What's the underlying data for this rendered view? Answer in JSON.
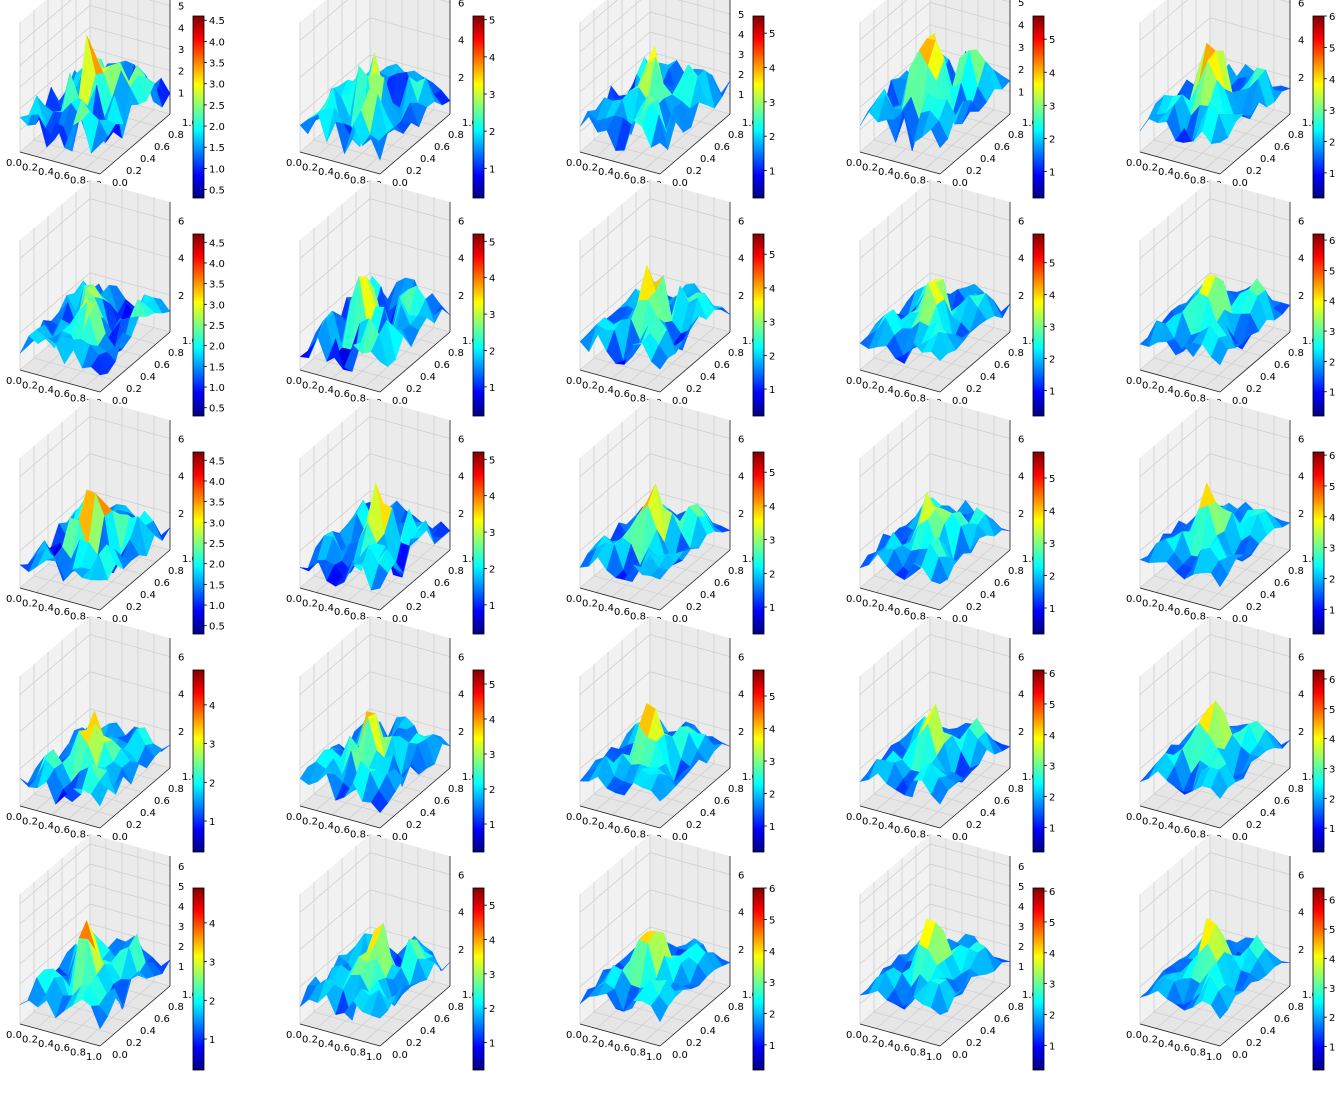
{
  "figure": {
    "type": "surface-3d-grid",
    "rows": 5,
    "cols": 5,
    "colormap": "jet",
    "colormap_stops": [
      "#00007f",
      "#0000ff",
      "#007fff",
      "#00ffff",
      "#7fff7f",
      "#ffff00",
      "#ff7f00",
      "#ff0000",
      "#7f0000"
    ],
    "pane_color": "#f2f2f2",
    "grid_color": "#d0d0d0"
  },
  "chart_data": [
    {
      "type": "surface",
      "xlim": [
        0,
        1
      ],
      "ylim": [
        0,
        1
      ],
      "x_ticks": [
        "0.0",
        "0.2",
        "0.4",
        "0.6",
        "0.8",
        "1.0"
      ],
      "y_ticks": [
        "0.0",
        "0.2",
        "0.4",
        "0.6",
        "0.8",
        "1.0"
      ],
      "z_ticks": [
        "1",
        "2",
        "3",
        "4",
        "5"
      ],
      "zlim": [
        0,
        6
      ],
      "clim": [
        0.3,
        4.6
      ],
      "colorbar_ticks": [
        "0.5",
        "1.0",
        "1.5",
        "2.0",
        "2.5",
        "3.0",
        "3.5",
        "4.0",
        "4.5"
      ],
      "peak": 4.6,
      "spikiness": 0.95,
      "seed": 11
    },
    {
      "type": "surface",
      "xlim": [
        0,
        1
      ],
      "ylim": [
        0,
        1
      ],
      "x_ticks": [
        "0.0",
        "0.2",
        "0.4",
        "0.6",
        "0.8",
        "1.0"
      ],
      "y_ticks": [
        "0.0",
        "0.2",
        "0.4",
        "0.6",
        "0.8",
        "1.0"
      ],
      "z_ticks": [
        "2",
        "4",
        "6"
      ],
      "zlim": [
        0,
        7
      ],
      "clim": [
        0.2,
        5.1
      ],
      "colorbar_ticks": [
        "1",
        "2",
        "3",
        "4",
        "5"
      ],
      "peak": 5.1,
      "spikiness": 0.9,
      "seed": 12
    },
    {
      "type": "surface",
      "xlim": [
        0,
        1
      ],
      "ylim": [
        0,
        1
      ],
      "x_ticks": [
        "0.0",
        "0.2",
        "0.4",
        "0.6",
        "0.8",
        "1.0"
      ],
      "y_ticks": [
        "0.0",
        "0.2",
        "0.4",
        "0.6",
        "0.8",
        "1.0"
      ],
      "z_ticks": [
        "1",
        "2",
        "3",
        "4",
        "5",
        "6"
      ],
      "zlim": [
        0,
        6.5
      ],
      "clim": [
        0.2,
        5.5
      ],
      "colorbar_ticks": [
        "1",
        "2",
        "3",
        "4",
        "5"
      ],
      "peak": 5.5,
      "spikiness": 0.6,
      "seed": 13
    },
    {
      "type": "surface",
      "xlim": [
        0,
        1
      ],
      "ylim": [
        0,
        1
      ],
      "x_ticks": [
        "0.0",
        "0.2",
        "0.4",
        "0.6",
        "0.8",
        "1.0"
      ],
      "y_ticks": [
        "0.0",
        "0.2",
        "0.4",
        "0.6",
        "0.8",
        "1.0"
      ],
      "z_ticks": [
        "1",
        "2",
        "3",
        "4",
        "5"
      ],
      "zlim": [
        0,
        5.8
      ],
      "clim": [
        0.2,
        5.7
      ],
      "colorbar_ticks": [
        "1",
        "2",
        "3",
        "4",
        "5"
      ],
      "peak": 5.7,
      "spikiness": 0.5,
      "seed": 14
    },
    {
      "type": "surface",
      "xlim": [
        0,
        1
      ],
      "ylim": [
        0,
        1
      ],
      "x_ticks": [
        "0.0",
        "0.2",
        "0.4",
        "0.6",
        "0.8",
        "1.0"
      ],
      "y_ticks": [
        "0.0",
        "0.2",
        "0.4",
        "0.6",
        "0.8",
        "1.0"
      ],
      "z_ticks": [
        "2",
        "4",
        "6"
      ],
      "zlim": [
        0,
        7
      ],
      "clim": [
        0.2,
        6.0
      ],
      "colorbar_ticks": [
        "1",
        "2",
        "3",
        "4",
        "5",
        "6"
      ],
      "peak": 6.0,
      "spikiness": 0.4,
      "seed": 15
    },
    {
      "type": "surface",
      "xlim": [
        0,
        1
      ],
      "ylim": [
        0,
        1
      ],
      "x_ticks": [
        "0.0",
        "0.2",
        "0.4",
        "0.6",
        "0.8",
        "1.0"
      ],
      "y_ticks": [
        "0.0",
        "0.2",
        "0.4",
        "0.6",
        "0.8",
        "1.0"
      ],
      "z_ticks": [
        "2",
        "4",
        "6"
      ],
      "zlim": [
        0,
        7
      ],
      "clim": [
        0.3,
        4.7
      ],
      "colorbar_ticks": [
        "0.5",
        "1.0",
        "1.5",
        "2.0",
        "2.5",
        "3.0",
        "3.5",
        "4.0",
        "4.5"
      ],
      "peak": 4.7,
      "spikiness": 0.8,
      "seed": 21
    },
    {
      "type": "surface",
      "xlim": [
        0,
        1
      ],
      "ylim": [
        0,
        1
      ],
      "x_ticks": [
        "0.0",
        "0.2",
        "0.4",
        "0.6",
        "0.8",
        "1.0"
      ],
      "y_ticks": [
        "0.0",
        "0.2",
        "0.4",
        "0.6",
        "0.8",
        "1.0"
      ],
      "z_ticks": [
        "2",
        "4",
        "6"
      ],
      "zlim": [
        0,
        7
      ],
      "clim": [
        0.2,
        5.2
      ],
      "colorbar_ticks": [
        "1",
        "2",
        "3",
        "4",
        "5"
      ],
      "peak": 5.2,
      "spikiness": 0.75,
      "seed": 22
    },
    {
      "type": "surface",
      "xlim": [
        0,
        1
      ],
      "ylim": [
        0,
        1
      ],
      "x_ticks": [
        "0.0",
        "0.2",
        "0.4",
        "0.6",
        "0.8",
        "1.0"
      ],
      "y_ticks": [
        "0.0",
        "0.2",
        "0.4",
        "0.6",
        "0.8",
        "1.0"
      ],
      "z_ticks": [
        "2",
        "4",
        "6"
      ],
      "zlim": [
        0,
        7
      ],
      "clim": [
        0.2,
        5.6
      ],
      "colorbar_ticks": [
        "1",
        "2",
        "3",
        "4",
        "5"
      ],
      "peak": 5.6,
      "spikiness": 0.45,
      "seed": 23
    },
    {
      "type": "surface",
      "xlim": [
        0,
        1
      ],
      "ylim": [
        0,
        1
      ],
      "x_ticks": [
        "0.0",
        "0.2",
        "0.4",
        "0.6",
        "0.8",
        "1.0"
      ],
      "y_ticks": [
        "0.0",
        "0.2",
        "0.4",
        "0.6",
        "0.8",
        "1.0"
      ],
      "z_ticks": [
        "2",
        "4",
        "6"
      ],
      "zlim": [
        0,
        7
      ],
      "clim": [
        0.2,
        5.9
      ],
      "colorbar_ticks": [
        "1",
        "2",
        "3",
        "4",
        "5"
      ],
      "peak": 5.9,
      "spikiness": 0.35,
      "seed": 24
    },
    {
      "type": "surface",
      "xlim": [
        0,
        1
      ],
      "ylim": [
        0,
        1
      ],
      "x_ticks": [
        "0.0",
        "0.2",
        "0.4",
        "0.6",
        "0.8",
        "1.0"
      ],
      "y_ticks": [
        "0.0",
        "0.2",
        "0.4",
        "0.6",
        "0.8",
        "1.0"
      ],
      "z_ticks": [
        "2",
        "4",
        "6"
      ],
      "zlim": [
        0,
        7
      ],
      "clim": [
        0.2,
        6.2
      ],
      "colorbar_ticks": [
        "1",
        "2",
        "3",
        "4",
        "5",
        "6"
      ],
      "peak": 6.2,
      "spikiness": 0.3,
      "seed": 25
    },
    {
      "type": "surface",
      "xlim": [
        0,
        1
      ],
      "ylim": [
        0,
        1
      ],
      "x_ticks": [
        "0.0",
        "0.2",
        "0.4",
        "0.6",
        "0.8",
        "1.0"
      ],
      "y_ticks": [
        "0.0",
        "0.2",
        "0.4",
        "0.6",
        "0.8",
        "1.0"
      ],
      "z_ticks": [
        "2",
        "4",
        "6"
      ],
      "zlim": [
        0,
        7
      ],
      "clim": [
        0.3,
        4.7
      ],
      "colorbar_ticks": [
        "0.5",
        "1.0",
        "1.5",
        "2.0",
        "2.5",
        "3.0",
        "3.5",
        "4.0",
        "4.5"
      ],
      "peak": 4.7,
      "spikiness": 0.7,
      "seed": 31
    },
    {
      "type": "surface",
      "xlim": [
        0,
        1
      ],
      "ylim": [
        0,
        1
      ],
      "x_ticks": [
        "0.0",
        "0.2",
        "0.4",
        "0.6",
        "0.8",
        "1.0"
      ],
      "y_ticks": [
        "0.0",
        "0.2",
        "0.4",
        "0.6",
        "0.8",
        "1.0"
      ],
      "z_ticks": [
        "2",
        "4",
        "6"
      ],
      "zlim": [
        0,
        7
      ],
      "clim": [
        0.2,
        5.2
      ],
      "colorbar_ticks": [
        "1",
        "2",
        "3",
        "4",
        "5"
      ],
      "peak": 5.2,
      "spikiness": 0.65,
      "seed": 32
    },
    {
      "type": "surface",
      "xlim": [
        0,
        1
      ],
      "ylim": [
        0,
        1
      ],
      "x_ticks": [
        "0.0",
        "0.2",
        "0.4",
        "0.6",
        "0.8",
        "1.0"
      ],
      "y_ticks": [
        "0.0",
        "0.2",
        "0.4",
        "0.6",
        "0.8",
        "1.0"
      ],
      "z_ticks": [
        "2",
        "4",
        "6"
      ],
      "zlim": [
        0,
        7
      ],
      "clim": [
        0.2,
        5.6
      ],
      "colorbar_ticks": [
        "1",
        "2",
        "3",
        "4",
        "5"
      ],
      "peak": 5.6,
      "spikiness": 0.35,
      "seed": 33
    },
    {
      "type": "surface",
      "xlim": [
        0,
        1
      ],
      "ylim": [
        0,
        1
      ],
      "x_ticks": [
        "0.0",
        "0.2",
        "0.4",
        "0.6",
        "0.8",
        "1.0"
      ],
      "y_ticks": [
        "0.0",
        "0.2",
        "0.4",
        "0.6",
        "0.8",
        "1.0"
      ],
      "z_ticks": [
        "2",
        "4",
        "6"
      ],
      "zlim": [
        0,
        7
      ],
      "clim": [
        0.2,
        5.8
      ],
      "colorbar_ticks": [
        "1",
        "2",
        "3",
        "4",
        "5"
      ],
      "peak": 5.8,
      "spikiness": 0.3,
      "seed": 34
    },
    {
      "type": "surface",
      "xlim": [
        0,
        1
      ],
      "ylim": [
        0,
        1
      ],
      "x_ticks": [
        "0.0",
        "0.2",
        "0.4",
        "0.6",
        "0.8",
        "1.0"
      ],
      "y_ticks": [
        "0.0",
        "0.2",
        "0.4",
        "0.6",
        "0.8",
        "1.0"
      ],
      "z_ticks": [
        "2",
        "4",
        "6"
      ],
      "zlim": [
        0,
        7
      ],
      "clim": [
        0.2,
        6.1
      ],
      "colorbar_ticks": [
        "1",
        "2",
        "3",
        "4",
        "5",
        "6"
      ],
      "peak": 6.1,
      "spikiness": 0.25,
      "seed": 35
    },
    {
      "type": "surface",
      "xlim": [
        0,
        1
      ],
      "ylim": [
        0,
        1
      ],
      "x_ticks": [
        "0.0",
        "0.2",
        "0.4",
        "0.6",
        "0.8",
        "1.0"
      ],
      "y_ticks": [
        "0.0",
        "0.2",
        "0.4",
        "0.6",
        "0.8",
        "1.0"
      ],
      "z_ticks": [
        "2",
        "4",
        "6"
      ],
      "zlim": [
        0,
        7
      ],
      "clim": [
        0.2,
        4.9
      ],
      "colorbar_ticks": [
        "1",
        "2",
        "3",
        "4"
      ],
      "peak": 4.9,
      "spikiness": 0.6,
      "seed": 41
    },
    {
      "type": "surface",
      "xlim": [
        0,
        1
      ],
      "ylim": [
        0,
        1
      ],
      "x_ticks": [
        "0.0",
        "0.2",
        "0.4",
        "0.6",
        "0.8",
        "1.0"
      ],
      "y_ticks": [
        "0.0",
        "0.2",
        "0.4",
        "0.6",
        "0.8",
        "1.0"
      ],
      "z_ticks": [
        "2",
        "4",
        "6"
      ],
      "zlim": [
        0,
        7
      ],
      "clim": [
        0.2,
        5.4
      ],
      "colorbar_ticks": [
        "1",
        "2",
        "3",
        "4",
        "5"
      ],
      "peak": 5.4,
      "spikiness": 0.6,
      "seed": 42
    },
    {
      "type": "surface",
      "xlim": [
        0,
        1
      ],
      "ylim": [
        0,
        1
      ],
      "x_ticks": [
        "0.0",
        "0.2",
        "0.4",
        "0.6",
        "0.8",
        "1.0"
      ],
      "y_ticks": [
        "0.0",
        "0.2",
        "0.4",
        "0.6",
        "0.8",
        "1.0"
      ],
      "z_ticks": [
        "2",
        "4",
        "6"
      ],
      "zlim": [
        0,
        7
      ],
      "clim": [
        0.2,
        5.8
      ],
      "colorbar_ticks": [
        "1",
        "2",
        "3",
        "4",
        "5"
      ],
      "peak": 5.8,
      "spikiness": 0.3,
      "seed": 43
    },
    {
      "type": "surface",
      "xlim": [
        0,
        1
      ],
      "ylim": [
        0,
        1
      ],
      "x_ticks": [
        "0.0",
        "0.2",
        "0.4",
        "0.6",
        "0.8",
        "1.0"
      ],
      "y_ticks": [
        "0.0",
        "0.2",
        "0.4",
        "0.6",
        "0.8",
        "1.0"
      ],
      "z_ticks": [
        "2",
        "4",
        "6"
      ],
      "zlim": [
        0,
        7
      ],
      "clim": [
        0.2,
        6.1
      ],
      "colorbar_ticks": [
        "1",
        "2",
        "3",
        "4",
        "5",
        "6"
      ],
      "peak": 6.1,
      "spikiness": 0.25,
      "seed": 44
    },
    {
      "type": "surface",
      "xlim": [
        0,
        1
      ],
      "ylim": [
        0,
        1
      ],
      "x_ticks": [
        "0.0",
        "0.2",
        "0.4",
        "0.6",
        "0.8",
        "1.0"
      ],
      "y_ticks": [
        "0.0",
        "0.2",
        "0.4",
        "0.6",
        "0.8",
        "1.0"
      ],
      "z_ticks": [
        "2",
        "4",
        "6"
      ],
      "zlim": [
        0,
        7
      ],
      "clim": [
        0.2,
        6.3
      ],
      "colorbar_ticks": [
        "1",
        "2",
        "3",
        "4",
        "5",
        "6"
      ],
      "peak": 6.3,
      "spikiness": 0.2,
      "seed": 45
    },
    {
      "type": "surface",
      "xlim": [
        0,
        1
      ],
      "ylim": [
        0,
        1
      ],
      "x_ticks": [
        "0.0",
        "0.2",
        "0.4",
        "0.6",
        "0.8",
        "1.0"
      ],
      "y_ticks": [
        "0.0",
        "0.2",
        "0.4",
        "0.6",
        "0.8",
        "1.0"
      ],
      "z_ticks": [
        "1",
        "2",
        "3",
        "4",
        "5",
        "6"
      ],
      "zlim": [
        0,
        6.5
      ],
      "clim": [
        0.2,
        4.9
      ],
      "colorbar_ticks": [
        "1",
        "2",
        "3",
        "4"
      ],
      "peak": 4.9,
      "spikiness": 0.55,
      "seed": 51
    },
    {
      "type": "surface",
      "xlim": [
        0,
        1
      ],
      "ylim": [
        0,
        1
      ],
      "x_ticks": [
        "0.0",
        "0.2",
        "0.4",
        "0.6",
        "0.8",
        "1.0"
      ],
      "y_ticks": [
        "0.0",
        "0.2",
        "0.4",
        "0.6",
        "0.8",
        "1.0"
      ],
      "z_ticks": [
        "2",
        "4",
        "6"
      ],
      "zlim": [
        0,
        7
      ],
      "clim": [
        0.2,
        5.5
      ],
      "colorbar_ticks": [
        "1",
        "2",
        "3",
        "4",
        "5"
      ],
      "peak": 5.5,
      "spikiness": 0.55,
      "seed": 52
    },
    {
      "type": "surface",
      "xlim": [
        0,
        1
      ],
      "ylim": [
        0,
        1
      ],
      "x_ticks": [
        "0.0",
        "0.2",
        "0.4",
        "0.6",
        "0.8",
        "1.0"
      ],
      "y_ticks": [
        "0.0",
        "0.2",
        "0.4",
        "0.6",
        "0.8",
        "1.0"
      ],
      "z_ticks": [
        "2",
        "4",
        "6"
      ],
      "zlim": [
        0,
        7
      ],
      "clim": [
        0.2,
        6.0
      ],
      "colorbar_ticks": [
        "1",
        "2",
        "3",
        "4",
        "5",
        "6"
      ],
      "peak": 6.0,
      "spikiness": 0.25,
      "seed": 53
    },
    {
      "type": "surface",
      "xlim": [
        0,
        1
      ],
      "ylim": [
        0,
        1
      ],
      "x_ticks": [
        "0.0",
        "0.2",
        "0.4",
        "0.6",
        "0.8",
        "1.0"
      ],
      "y_ticks": [
        "0.0",
        "0.2",
        "0.4",
        "0.6",
        "0.8",
        "1.0"
      ],
      "z_ticks": [
        "1",
        "2",
        "3",
        "4",
        "5",
        "6"
      ],
      "zlim": [
        0,
        6.5
      ],
      "clim": [
        0.2,
        6.1
      ],
      "colorbar_ticks": [
        "1",
        "2",
        "3",
        "4",
        "5",
        "6"
      ],
      "peak": 6.1,
      "spikiness": 0.2,
      "seed": 54
    },
    {
      "type": "surface",
      "xlim": [
        0,
        1
      ],
      "ylim": [
        0,
        1
      ],
      "x_ticks": [
        "0.0",
        "0.2",
        "0.4",
        "0.6",
        "0.8",
        "1.0"
      ],
      "y_ticks": [
        "0.0",
        "0.2",
        "0.4",
        "0.6",
        "0.8",
        "1.0"
      ],
      "z_ticks": [
        "2",
        "4",
        "6"
      ],
      "zlim": [
        0,
        7
      ],
      "clim": [
        0.2,
        6.4
      ],
      "colorbar_ticks": [
        "1",
        "2",
        "3",
        "4",
        "5",
        "6"
      ],
      "peak": 6.4,
      "spikiness": 0.15,
      "seed": 55
    }
  ]
}
